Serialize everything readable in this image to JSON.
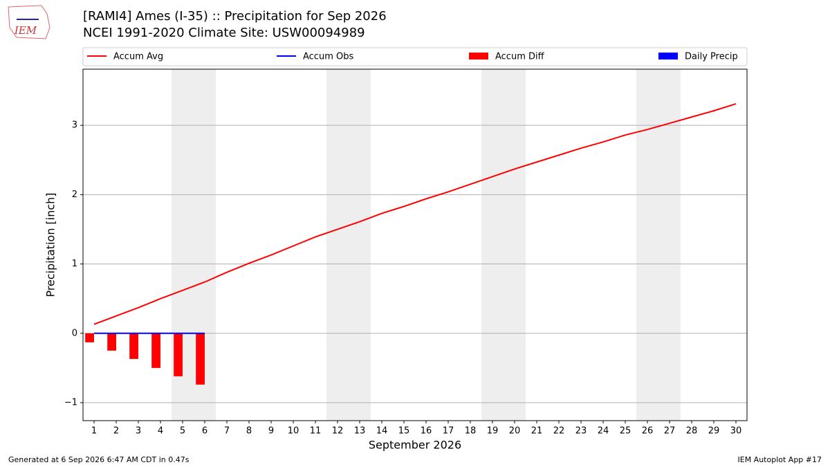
{
  "logo": "IEM",
  "footer_left": "Generated at 6 Sep 2026 6:47 AM CDT in 0.47s",
  "footer_right": "IEM Autoplot App #17",
  "chart_data": {
    "type": "combo",
    "title": "[RAMI4] Ames (I-35) :: Precipitation for Sep 2026",
    "subtitle": "NCEI 1991-2020 Climate Site: USW00094989",
    "x_label": "September 2026",
    "y_label": "Precipitation [inch]",
    "x": [
      1,
      2,
      3,
      4,
      5,
      6,
      7,
      8,
      9,
      10,
      11,
      12,
      13,
      14,
      15,
      16,
      17,
      18,
      19,
      20,
      21,
      22,
      23,
      24,
      25,
      26,
      27,
      28,
      29,
      30
    ],
    "xlim": [
      0.5,
      30.5
    ],
    "xticks": [
      1,
      2,
      3,
      4,
      5,
      6,
      7,
      8,
      9,
      10,
      11,
      12,
      13,
      14,
      15,
      16,
      17,
      18,
      19,
      20,
      21,
      22,
      23,
      24,
      25,
      26,
      27,
      28,
      29,
      30
    ],
    "ylim": [
      -1.26,
      3.81
    ],
    "yticks": [
      {
        "value": -1,
        "label": "−1"
      },
      0,
      1,
      2,
      3
    ],
    "grid": true,
    "weekend_days": [
      5,
      6,
      12,
      13,
      19,
      20,
      26,
      27
    ],
    "weekend_color": "#eeeeee",
    "series": [
      {
        "name": "Accum Avg",
        "type": "line",
        "color": "#ff0000",
        "values": [
          0.13,
          0.25,
          0.37,
          0.5,
          0.62,
          0.74,
          0.88,
          1.01,
          1.13,
          1.26,
          1.39,
          1.5,
          1.61,
          1.73,
          1.83,
          1.94,
          2.04,
          2.15,
          2.26,
          2.37,
          2.47,
          2.57,
          2.67,
          2.76,
          2.86,
          2.94,
          3.03,
          3.12,
          3.21,
          3.31
        ]
      },
      {
        "name": "Accum Obs",
        "type": "line",
        "color": "#0000ff",
        "values": [
          0,
          0,
          0,
          0,
          0,
          0,
          null,
          null,
          null,
          null,
          null,
          null,
          null,
          null,
          null,
          null,
          null,
          null,
          null,
          null,
          null,
          null,
          null,
          null,
          null,
          null,
          null,
          null,
          null,
          null
        ]
      },
      {
        "name": "Accum Diff",
        "type": "bar",
        "color": "#ff0000",
        "values": [
          -0.13,
          -0.25,
          -0.37,
          -0.5,
          -0.62,
          -0.74,
          null,
          null,
          null,
          null,
          null,
          null,
          null,
          null,
          null,
          null,
          null,
          null,
          null,
          null,
          null,
          null,
          null,
          null,
          null,
          null,
          null,
          null,
          null,
          null
        ]
      },
      {
        "name": "Daily Precip",
        "type": "bar",
        "color": "#0000ff",
        "values": [
          0,
          0,
          0,
          0,
          0,
          0,
          null,
          null,
          null,
          null,
          null,
          null,
          null,
          null,
          null,
          null,
          null,
          null,
          null,
          null,
          null,
          null,
          null,
          null,
          null,
          null,
          null,
          null,
          null,
          null
        ]
      }
    ]
  }
}
